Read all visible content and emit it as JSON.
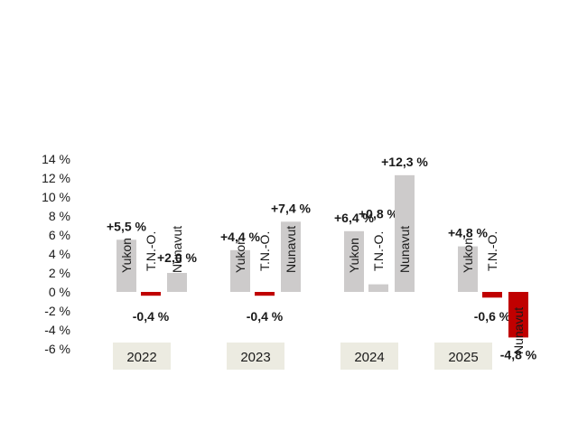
{
  "chart_data": {
    "type": "bar",
    "y_ticks": [
      "14 %",
      "12 %",
      "10 %",
      "8 %",
      "6 %",
      "4 %",
      "2 %",
      "0 %",
      "-2 %",
      "-4 %",
      "-6 %"
    ],
    "y_values": [
      14,
      12,
      10,
      8,
      6,
      4,
      2,
      0,
      -2,
      -4,
      -6
    ],
    "ylim": [
      -6,
      14
    ],
    "grid": false,
    "legend": "none",
    "groups": [
      {
        "year": "2022",
        "bars": [
          {
            "name": "Yukon",
            "value": 5.5,
            "label": "+5,5 %"
          },
          {
            "name": "T.N.-O.",
            "value": -0.4,
            "label": "-0,4 %"
          },
          {
            "name": "Nunavut",
            "value": 2.0,
            "label": "+2,0 %"
          }
        ]
      },
      {
        "year": "2023",
        "bars": [
          {
            "name": "Yukon",
            "value": 4.4,
            "label": "+4,4 %"
          },
          {
            "name": "T.N.-O.",
            "value": -0.4,
            "label": "-0,4 %"
          },
          {
            "name": "Nunavut",
            "value": 7.4,
            "label": "+7,4 %"
          }
        ]
      },
      {
        "year": "2024",
        "bars": [
          {
            "name": "Yukon",
            "value": 6.4,
            "label": "+6,4 %"
          },
          {
            "name": "T.N.-O.",
            "value": 0.8,
            "label": "+0,8 %"
          },
          {
            "name": "Nunavut",
            "value": 12.3,
            "label": "+12,3 %"
          }
        ]
      },
      {
        "year": "2025",
        "bars": [
          {
            "name": "Yukon",
            "value": 4.8,
            "label": "+4,8 %"
          },
          {
            "name": "T.N.-O.",
            "value": -0.6,
            "label": "-0,6 %"
          },
          {
            "name": "Nunavut",
            "value": -4.8,
            "label": "-4,8 %"
          }
        ]
      }
    ],
    "colors": {
      "positive": "#cdcbcb",
      "negative": "#c00000",
      "year_box": "#ecebe1"
    }
  }
}
